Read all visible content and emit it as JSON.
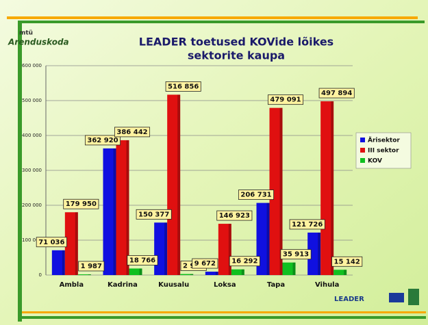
{
  "chart_data": {
    "type": "bar",
    "title": [
      "LEADER toetused KOVide lõikes",
      "sektorite kaupa"
    ],
    "logo": {
      "small": "mtü",
      "name": "Arenduskoda"
    },
    "footer_logo": "LEADER",
    "categories": [
      "Ambla",
      "Kadrina",
      "Kuusalu",
      "Loksa",
      "Tapa",
      "Vihula"
    ],
    "series": [
      {
        "name": "Ärisektor",
        "color": "#1010e0",
        "values": [
          71036,
          362920,
          150377,
          9672,
          206731,
          121726
        ],
        "value_labels": [
          "71 036",
          "362 920",
          "150 377",
          "9 672",
          "206 731",
          "121 726"
        ]
      },
      {
        "name": "III sektor",
        "color": "#e01010",
        "values": [
          179950,
          386442,
          516856,
          146923,
          479091,
          497894
        ],
        "value_labels": [
          "179 950",
          "386 442",
          "516 856",
          "146 923",
          "479 091",
          "497 894"
        ]
      },
      {
        "name": "KOV",
        "color": "#10c020",
        "values": [
          1987,
          18766,
          2934,
          16292,
          35913,
          15142
        ],
        "value_labels": [
          "1 987",
          "18 766",
          "2 934",
          "16 292",
          "35 913",
          "15 142"
        ]
      }
    ],
    "ylim": [
      0,
      600000
    ],
    "yticks": [
      0,
      {
        "value": 100000,
        "label": "100 000"
      },
      {
        "value": 200000,
        "label": "200 000"
      },
      {
        "value": 300000,
        "label": "300 000"
      },
      {
        "value": 400000,
        "label": "400 000"
      },
      {
        "value": 500000,
        "label": "500 000"
      },
      {
        "value": 600000,
        "label": "600 000"
      }
    ],
    "grid": true,
    "legend": "right"
  }
}
